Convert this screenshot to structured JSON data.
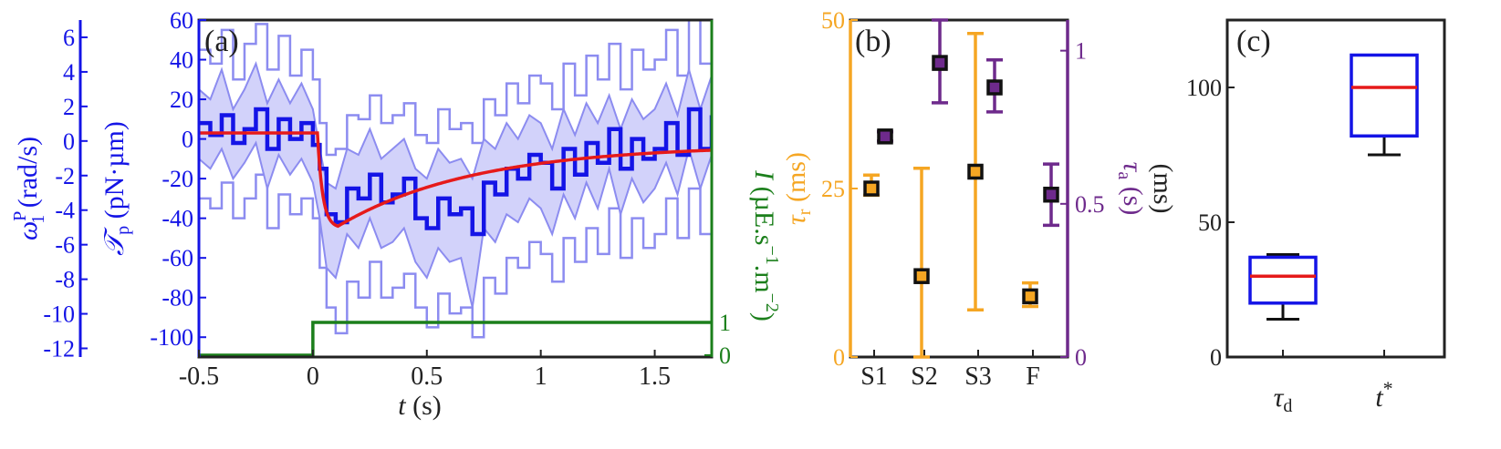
{
  "colors": {
    "blue": "#1414e6",
    "lightblue": "#8c8cf0",
    "band": "#d2d2fa",
    "red": "#e61a1a",
    "green": "#1b7f1b",
    "orange": "#f5a623",
    "purple": "#6e2a8c",
    "black": "#222222"
  },
  "chart_data": [
    {
      "panel": "a",
      "type": "line",
      "panel_label": "(a)",
      "xlabel_var": "t",
      "xlabel_unit": " (s)",
      "xlim": [
        -0.5,
        1.75
      ],
      "xticks": [
        "-0.5",
        "0",
        "0.5",
        "1",
        "1.5"
      ],
      "y_torque_label_sym": "𝒯",
      "y_torque_label_sub": "p",
      "y_torque_label_unit": " (pN·µm)",
      "y_torque_lim": [
        -110,
        60
      ],
      "y_torque_ticks": [
        "60",
        "40",
        "20",
        "0",
        "-20",
        "-40",
        "-60",
        "-80",
        "-100"
      ],
      "y_omega_label_sym": "ω",
      "y_omega_label_sup": "P",
      "y_omega_label_sub": "1",
      "y_omega_label_unit": " (rad/s)",
      "y_omega_lim": [
        -12.5,
        7
      ],
      "y_omega_ticks": [
        "6",
        "4",
        "2",
        "0",
        "-2",
        "-4",
        "-6",
        "-8",
        "-10",
        "-12"
      ],
      "y_light_label_sym": "I",
      "y_light_label_unit": " (µE.s",
      "y_light_label_exp1": "−1",
      "y_light_label_mid": ".m",
      "y_light_label_exp2": "−2",
      "y_light_label_end": ")",
      "y_light_ticks": [
        "1",
        "0"
      ],
      "light_step": {
        "x": [
          -0.5,
          0,
          0,
          1.75
        ],
        "y": [
          0,
          0,
          1,
          1
        ]
      },
      "fit_curve": {
        "delay": 0.02,
        "plateau": 3,
        "min": -44,
        "t_min": 0.11,
        "tau_rise": 0.03,
        "tau_recover": 0.6,
        "end": -3
      },
      "mean_trace": {
        "t": [
          -0.5,
          -0.45,
          -0.4,
          -0.35,
          -0.3,
          -0.25,
          -0.2,
          -0.15,
          -0.1,
          -0.05,
          0,
          0.03,
          0.06,
          0.1,
          0.15,
          0.2,
          0.25,
          0.3,
          0.35,
          0.4,
          0.45,
          0.5,
          0.55,
          0.6,
          0.65,
          0.7,
          0.75,
          0.8,
          0.85,
          0.9,
          0.95,
          1,
          1.05,
          1.1,
          1.15,
          1.2,
          1.25,
          1.3,
          1.35,
          1.4,
          1.45,
          1.5,
          1.55,
          1.6,
          1.65,
          1.7,
          1.75
        ],
        "y": [
          8,
          2,
          12,
          -2,
          5,
          15,
          -5,
          10,
          0,
          8,
          -3,
          -15,
          -38,
          -42,
          -25,
          -30,
          -18,
          -32,
          -28,
          -20,
          -40,
          -45,
          -30,
          -38,
          -35,
          -48,
          -22,
          -28,
          -15,
          -20,
          -8,
          -12,
          -25,
          -5,
          -18,
          -2,
          -12,
          5,
          -15,
          0,
          -10,
          -5,
          8,
          -8,
          15,
          -5,
          12
        ]
      },
      "band_upper": [
        25,
        20,
        35,
        15,
        25,
        38,
        18,
        30,
        18,
        28,
        15,
        -5,
        -22,
        -25,
        -5,
        -8,
        5,
        -10,
        -5,
        0,
        -15,
        -20,
        -5,
        -12,
        -10,
        -20,
        0,
        -5,
        8,
        0,
        12,
        8,
        -5,
        15,
        2,
        18,
        8,
        22,
        5,
        20,
        10,
        15,
        28,
        12,
        35,
        15,
        32
      ],
      "band_lower": [
        -10,
        -15,
        -5,
        -20,
        -12,
        -2,
        -25,
        -8,
        -18,
        -10,
        -22,
        -40,
        -65,
        -70,
        -48,
        -55,
        -40,
        -55,
        -52,
        -45,
        -62,
        -70,
        -55,
        -62,
        -60,
        -85,
        -45,
        -52,
        -38,
        -42,
        -30,
        -35,
        -48,
        -28,
        -40,
        -22,
        -35,
        -15,
        -38,
        -20,
        -32,
        -25,
        -12,
        -28,
        -5,
        -25,
        -8
      ],
      "outer_upper": [
        45,
        38,
        55,
        30,
        48,
        58,
        35,
        52,
        32,
        45,
        30,
        8,
        -8,
        -5,
        12,
        10,
        22,
        8,
        12,
        18,
        2,
        -2,
        15,
        5,
        8,
        -2,
        20,
        12,
        28,
        18,
        32,
        28,
        15,
        38,
        22,
        42,
        30,
        48,
        25,
        45,
        35,
        40,
        55,
        32,
        60,
        38,
        58
      ],
      "outer_lower": [
        -30,
        -35,
        -22,
        -40,
        -30,
        -18,
        -45,
        -28,
        -38,
        -30,
        -40,
        -65,
        -85,
        -98,
        -72,
        -80,
        -62,
        -80,
        -75,
        -68,
        -85,
        -95,
        -78,
        -88,
        -85,
        -100,
        -70,
        -78,
        -60,
        -65,
        -52,
        -58,
        -72,
        -50,
        -62,
        -45,
        -58,
        -35,
        -60,
        -40,
        -55,
        -48,
        -30,
        -50,
        -25,
        -48,
        -28
      ]
    },
    {
      "panel": "b",
      "type": "scatter",
      "panel_label": "(b)",
      "categories": [
        "S1",
        "S2",
        "S3",
        "F"
      ],
      "y_left_label_sym": "τ",
      "y_left_label_sub": "r",
      "y_left_label_unit": " (ms)",
      "y_left_lim": [
        0,
        50
      ],
      "y_left_ticks": [
        "50",
        "25",
        "0"
      ],
      "y_right_label_sym": "τ",
      "y_right_label_sub": "a",
      "y_right_label_unit": " (s)",
      "y_right_lim": [
        0,
        1.1
      ],
      "y_right_ticks": [
        "1",
        "0.5",
        "0"
      ],
      "tau_r": [
        {
          "v": 25,
          "lo": 24,
          "hi": 27
        },
        {
          "v": 12,
          "lo": 0,
          "hi": 28
        },
        {
          "v": 27.5,
          "lo": 7,
          "hi": 48
        },
        {
          "v": 9,
          "lo": 7.5,
          "hi": 11
        }
      ],
      "tau_a": [
        {
          "v": 0.72,
          "lo": 0.705,
          "hi": 0.735
        },
        {
          "v": 0.96,
          "lo": 0.83,
          "hi": 1.1
        },
        {
          "v": 0.88,
          "lo": 0.8,
          "hi": 0.97
        },
        {
          "v": 0.53,
          "lo": 0.43,
          "hi": 0.63
        }
      ]
    },
    {
      "panel": "c",
      "type": "box",
      "panel_label": "(c)",
      "categories_sym": [
        "τ",
        "t"
      ],
      "categories_sub": [
        "d",
        ""
      ],
      "categories_sup": [
        "",
        "*"
      ],
      "ylabel": "(ms)",
      "ylim": [
        0,
        125
      ],
      "yticks": [
        "100",
        "50",
        "0"
      ],
      "boxes": [
        {
          "q1": 20,
          "median": 30,
          "q3": 37,
          "wlo": 14,
          "whi": 38
        },
        {
          "q1": 82,
          "median": 100,
          "q3": 112,
          "wlo": 75,
          "whi": 112
        }
      ]
    }
  ]
}
